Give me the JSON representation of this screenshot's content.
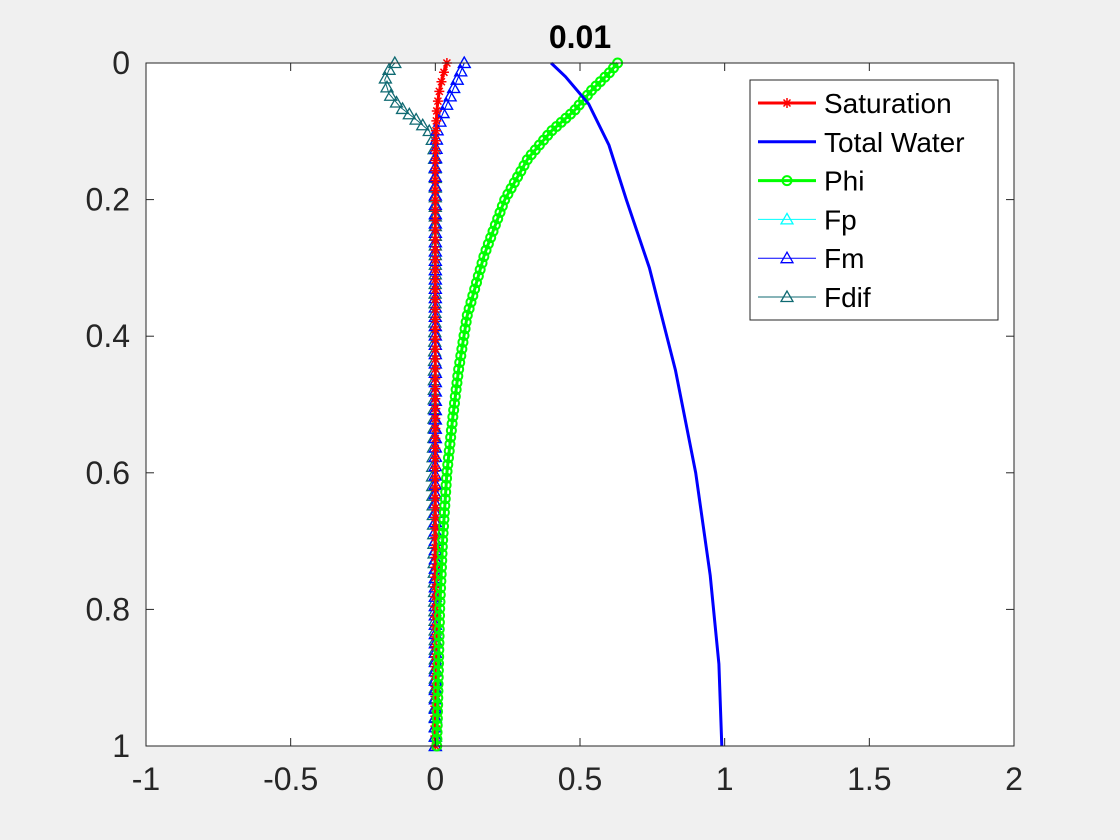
{
  "figure": {
    "background": "#f0f0f0"
  },
  "chart_data": {
    "type": "line",
    "title": "0.01",
    "xlabel": "",
    "ylabel": "",
    "xlim": [
      -1,
      2
    ],
    "ylim": [
      0,
      1
    ],
    "y_reversed": true,
    "xticks": [
      -1,
      -0.5,
      0,
      0.5,
      1,
      1.5,
      2
    ],
    "xtick_labels": [
      "-1",
      "-0.5",
      "0",
      "0.5",
      "1",
      "1.5",
      "2"
    ],
    "yticks": [
      0,
      0.2,
      0.4,
      0.6,
      0.8,
      1
    ],
    "ytick_labels": [
      "0",
      "0.2",
      "0.4",
      "0.6",
      "0.8",
      "1"
    ],
    "grid": false,
    "legend_position": "top-right",
    "series": [
      {
        "name": "Saturation",
        "color": "#ff0000",
        "marker": "asterisk",
        "line_width": 3,
        "points": [
          [
            0.04,
            0
          ],
          [
            0.025,
            0.02
          ],
          [
            0.012,
            0.045
          ],
          [
            0.005,
            0.07
          ],
          [
            0.002,
            0.1
          ],
          [
            0,
            0.15
          ],
          [
            0,
            0.3
          ],
          [
            0,
            0.5
          ],
          [
            0,
            0.7
          ],
          [
            0,
            0.9
          ],
          [
            0,
            1
          ]
        ]
      },
      {
        "name": "Total Water",
        "color": "#0000ff",
        "marker": "none",
        "line_width": 3,
        "points": [
          [
            0.4,
            0
          ],
          [
            0.45,
            0.02
          ],
          [
            0.53,
            0.06
          ],
          [
            0.6,
            0.12
          ],
          [
            0.66,
            0.2
          ],
          [
            0.74,
            0.3
          ],
          [
            0.83,
            0.45
          ],
          [
            0.9,
            0.6
          ],
          [
            0.95,
            0.75
          ],
          [
            0.98,
            0.88
          ],
          [
            0.99,
            1
          ]
        ]
      },
      {
        "name": "Phi",
        "color": "#00ff00",
        "marker": "circle",
        "line_width": 3,
        "points": [
          [
            0.63,
            0
          ],
          [
            0.6,
            0.015
          ],
          [
            0.54,
            0.04
          ],
          [
            0.48,
            0.07
          ],
          [
            0.4,
            0.1
          ],
          [
            0.32,
            0.14
          ],
          [
            0.24,
            0.2
          ],
          [
            0.17,
            0.28
          ],
          [
            0.11,
            0.37
          ],
          [
            0.08,
            0.45
          ],
          [
            0.06,
            0.52
          ],
          [
            0.04,
            0.6
          ],
          [
            0.025,
            0.7
          ],
          [
            0.015,
            0.8
          ],
          [
            0.01,
            0.9
          ],
          [
            0.005,
            1
          ]
        ]
      },
      {
        "name": "Fp",
        "color": "#00ffff",
        "marker": "triangle",
        "line_width": 1,
        "points": [
          [
            0.1,
            0
          ],
          [
            0.08,
            0.02
          ],
          [
            0.05,
            0.05
          ],
          [
            0.02,
            0.08
          ],
          [
            0.005,
            0.1
          ],
          [
            0,
            0.15
          ],
          [
            0,
            0.3
          ],
          [
            0,
            0.5
          ],
          [
            0,
            0.7
          ],
          [
            0,
            0.9
          ],
          [
            0,
            1
          ]
        ]
      },
      {
        "name": "Fm",
        "color": "#0000ff",
        "marker": "triangle",
        "line_width": 1,
        "points": [
          [
            0.1,
            0
          ],
          [
            0.08,
            0.02
          ],
          [
            0.05,
            0.05
          ],
          [
            0.02,
            0.08
          ],
          [
            0.005,
            0.1
          ],
          [
            0,
            0.15
          ],
          [
            0,
            0.3
          ],
          [
            0,
            0.5
          ],
          [
            0,
            0.7
          ],
          [
            0,
            0.9
          ],
          [
            0,
            1
          ]
        ]
      },
      {
        "name": "Fdif",
        "color": "#0f6a72",
        "marker": "triangle",
        "line_width": 1,
        "points": [
          [
            -0.14,
            0
          ],
          [
            -0.16,
            0.01
          ],
          [
            -0.175,
            0.025
          ],
          [
            -0.16,
            0.045
          ],
          [
            -0.12,
            0.065
          ],
          [
            -0.06,
            0.085
          ],
          [
            -0.02,
            0.1
          ],
          [
            -0.005,
            0.12
          ],
          [
            0,
            0.16
          ],
          [
            0,
            0.3
          ],
          [
            -0.005,
            0.55
          ],
          [
            -0.01,
            0.6
          ],
          [
            -0.005,
            0.7
          ],
          [
            0,
            0.85
          ],
          [
            0,
            1
          ]
        ]
      }
    ]
  }
}
